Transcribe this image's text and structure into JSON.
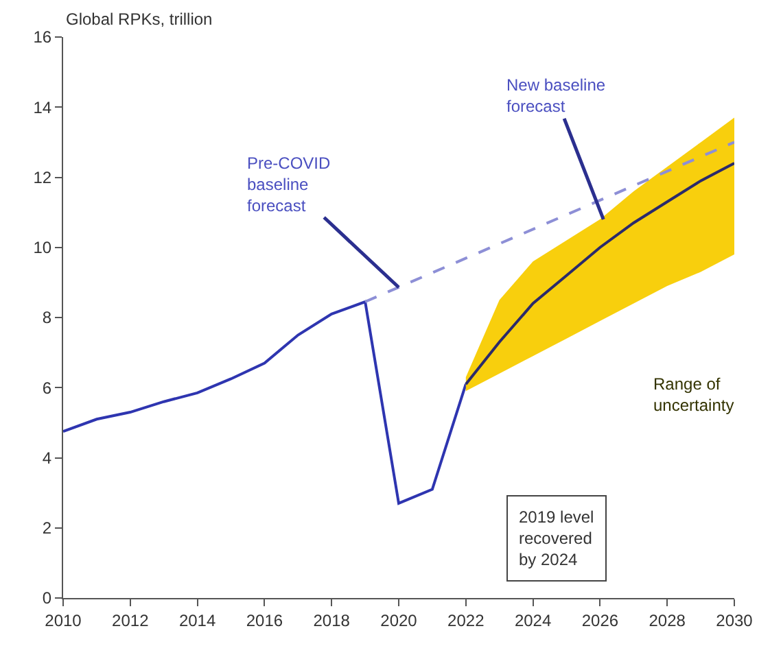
{
  "chart_data": {
    "type": "line",
    "ylabel": "Global RPKs, trillion",
    "xlim": [
      2010,
      2030
    ],
    "xticks": [
      2010,
      2012,
      2014,
      2016,
      2018,
      2020,
      2022,
      2024,
      2026,
      2028,
      2030
    ],
    "ylim": [
      0,
      16
    ],
    "yticks": [
      0,
      2,
      4,
      6,
      8,
      10,
      12,
      14,
      16
    ],
    "marker": "none",
    "series": [
      {
        "color": "#2e35b0",
        "line_style": "solid",
        "x": [
          2010,
          2011,
          2012,
          2013,
          2014,
          2015,
          2016,
          2017,
          2018,
          2019,
          2020,
          2021,
          2022
        ],
        "values": [
          4.75,
          5.1,
          5.3,
          5.6,
          5.85,
          6.25,
          6.7,
          7.5,
          8.1,
          8.45,
          2.7,
          3.1,
          6.1
        ]
      },
      {
        "color": "#2b2a6b",
        "line_style": "solid",
        "x": [
          2022,
          2023,
          2024,
          2025,
          2026,
          2027,
          2028,
          2029,
          2030
        ],
        "values": [
          6.1,
          7.3,
          8.4,
          9.2,
          10.0,
          10.7,
          11.3,
          11.9,
          12.4
        ],
        "lower": [
          5.9,
          6.4,
          6.9,
          7.4,
          7.9,
          8.4,
          8.9,
          9.3,
          9.8
        ],
        "upper": [
          6.3,
          8.5,
          9.6,
          10.2,
          10.8,
          11.6,
          12.3,
          13.0,
          13.7
        ]
      },
      {
        "color": "#8d8fd6",
        "line_style": "dashed",
        "x": [
          2019,
          2030
        ],
        "values": [
          8.45,
          13.0
        ]
      }
    ],
    "annotations": [
      {
        "text": "Pre-COVID baseline forecast",
        "x": 2020,
        "y": 8.86
      },
      {
        "text": "New baseline forecast",
        "x": 2026.1,
        "y": 10.8
      },
      "Range of uncertainty",
      "2019 level recovered by 2024"
    ]
  }
}
